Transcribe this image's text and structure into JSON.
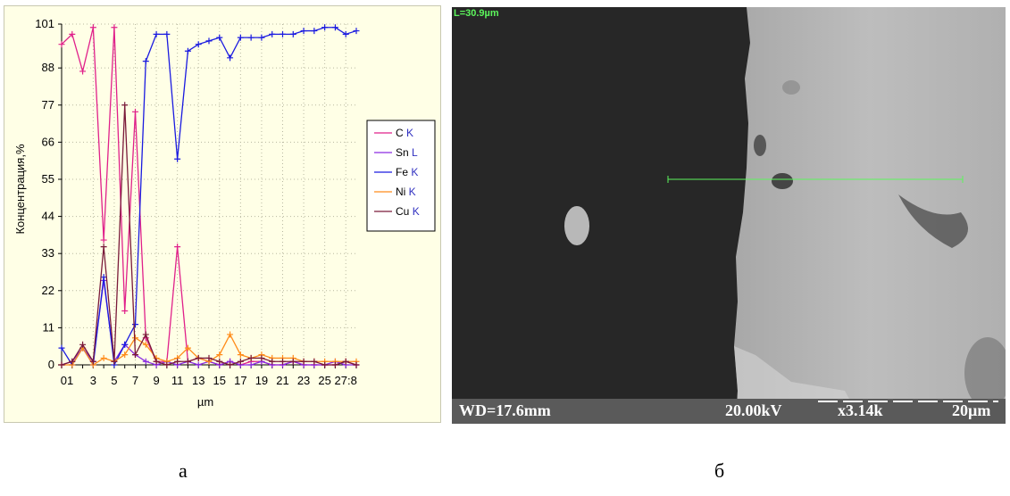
{
  "panel_a": {
    "caption": "а",
    "chart_data": {
      "type": "line",
      "title": "",
      "xlabel": "µm",
      "ylabel": "Концентрация,%",
      "ylim": [
        0,
        101
      ],
      "xlim": [
        0,
        28
      ],
      "y_ticks": [
        "0",
        "11",
        "22",
        "33",
        "44",
        "55",
        "66",
        "77",
        "88",
        "101"
      ],
      "y_tick_values": [
        0,
        11,
        22,
        33,
        44,
        55,
        66,
        77,
        88,
        101
      ],
      "x_ticks": [
        "01",
        "3",
        "5",
        "7",
        "9",
        "11",
        "13",
        "15",
        "17",
        "19",
        "21",
        "23",
        "25",
        "27:8"
      ],
      "x_tick_values": [
        0,
        3,
        5,
        7,
        9,
        11,
        13,
        15,
        17,
        19,
        21,
        23,
        25,
        27
      ],
      "grid": true,
      "legend_position": "right",
      "series": [
        {
          "name": "C",
          "line": "K",
          "color": "#e0208a",
          "x": [
            0,
            1,
            2,
            3,
            4,
            5,
            6,
            7,
            8,
            9,
            10,
            11,
            12,
            13,
            14,
            15,
            16,
            17,
            18,
            19,
            20,
            21,
            22,
            23,
            24,
            25,
            26,
            27,
            28
          ],
          "y": [
            95,
            98,
            87,
            100,
            37,
            100,
            16,
            75,
            8,
            1,
            1,
            35,
            1,
            2,
            1,
            0,
            1,
            0,
            1,
            1,
            0,
            0,
            1,
            0,
            0,
            0,
            0,
            1,
            0
          ]
        },
        {
          "name": "Sn",
          "line": "L",
          "color": "#8a2be2",
          "x": [
            0,
            1,
            2,
            3,
            4,
            5,
            6,
            7,
            8,
            9,
            10,
            11,
            12,
            13,
            14,
            15,
            16,
            17,
            18,
            19,
            20,
            21,
            22,
            23,
            24,
            25,
            26,
            27,
            28
          ],
          "y": [
            0,
            1,
            5,
            1,
            25,
            1,
            6,
            3,
            1,
            0,
            1,
            0,
            1,
            0,
            1,
            0,
            1,
            0,
            0,
            1,
            0,
            0,
            1,
            0,
            0,
            0,
            1,
            0,
            0
          ]
        },
        {
          "name": "Fe",
          "line": "K",
          "color": "#1a1ae0",
          "x": [
            0,
            1,
            2,
            3,
            4,
            5,
            6,
            7,
            8,
            9,
            10,
            11,
            12,
            13,
            14,
            15,
            16,
            17,
            18,
            19,
            20,
            21,
            22,
            23,
            24,
            25,
            26,
            27,
            28
          ],
          "y": [
            5,
            0,
            5,
            0,
            26,
            0,
            6,
            12,
            90,
            98,
            98,
            61,
            93,
            95,
            96,
            97,
            91,
            97,
            97,
            97,
            98,
            98,
            98,
            99,
            99,
            100,
            100,
            98,
            99
          ]
        },
        {
          "name": "Ni",
          "line": "K",
          "color": "#ff8c1a",
          "x": [
            0,
            1,
            2,
            3,
            4,
            5,
            6,
            7,
            8,
            9,
            10,
            11,
            12,
            13,
            14,
            15,
            16,
            17,
            18,
            19,
            20,
            21,
            22,
            23,
            24,
            25,
            26,
            27,
            28
          ],
          "y": [
            0,
            0,
            5,
            0,
            2,
            1,
            3,
            8,
            6,
            2,
            1,
            2,
            5,
            2,
            1,
            3,
            9,
            3,
            2,
            3,
            2,
            2,
            2,
            1,
            1,
            1,
            1,
            1,
            1
          ]
        },
        {
          "name": "Cu",
          "line": "K",
          "color": "#7a1a3a",
          "x": [
            0,
            1,
            2,
            3,
            4,
            5,
            6,
            7,
            8,
            9,
            10,
            11,
            12,
            13,
            14,
            15,
            16,
            17,
            18,
            19,
            20,
            21,
            22,
            23,
            24,
            25,
            26,
            27,
            28
          ],
          "y": [
            0,
            1,
            6,
            1,
            35,
            1,
            77,
            3,
            9,
            1,
            0,
            1,
            1,
            2,
            2,
            1,
            0,
            1,
            2,
            2,
            1,
            1,
            1,
            1,
            1,
            0,
            0,
            1,
            0
          ]
        }
      ]
    }
  },
  "panel_b": {
    "caption": "б",
    "line_label": "L=30.9µm",
    "wd": "WD=17.6mm",
    "kv": "20.00kV",
    "mag": "x3.14k",
    "scale": "20µm"
  }
}
